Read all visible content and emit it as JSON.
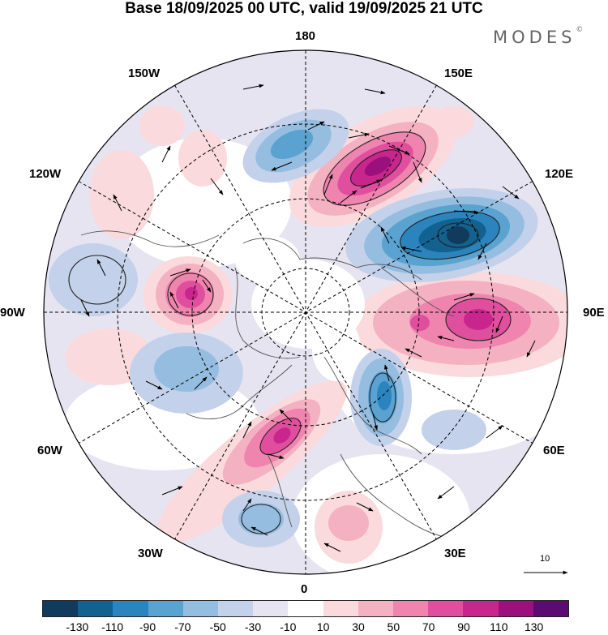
{
  "header": {
    "title": "Base 18/09/2025 00 UTC, valid 19/09/2025 21 UTC",
    "brand": "MODES",
    "brand_mark": "©"
  },
  "map": {
    "meridian_labels": {
      "180": "180",
      "150E": "150E",
      "120E": "120E",
      "90E": "90E",
      "60E": "60E",
      "30E": "30E",
      "0": "0",
      "30W": "30W",
      "60W": "60W",
      "90W": "90W",
      "120W": "120W",
      "150W": "150W"
    },
    "reference_vector_label": "10"
  },
  "colorbar": {
    "colors": [
      "#113a5c",
      "#13618e",
      "#2b84bd",
      "#5aa2d0",
      "#94bde0",
      "#c3d1ea",
      "#e7e4f1",
      "#ffffff",
      "#fadadc",
      "#f4b1c2",
      "#ef84ae",
      "#e04f9e",
      "#c9268d",
      "#9a107c",
      "#5c0b71"
    ],
    "tick_labels": [
      "-130",
      "-110",
      "-90",
      "-70",
      "-50",
      "-30",
      "-10",
      "10",
      "30",
      "50",
      "70",
      "90",
      "110",
      "130"
    ]
  }
}
